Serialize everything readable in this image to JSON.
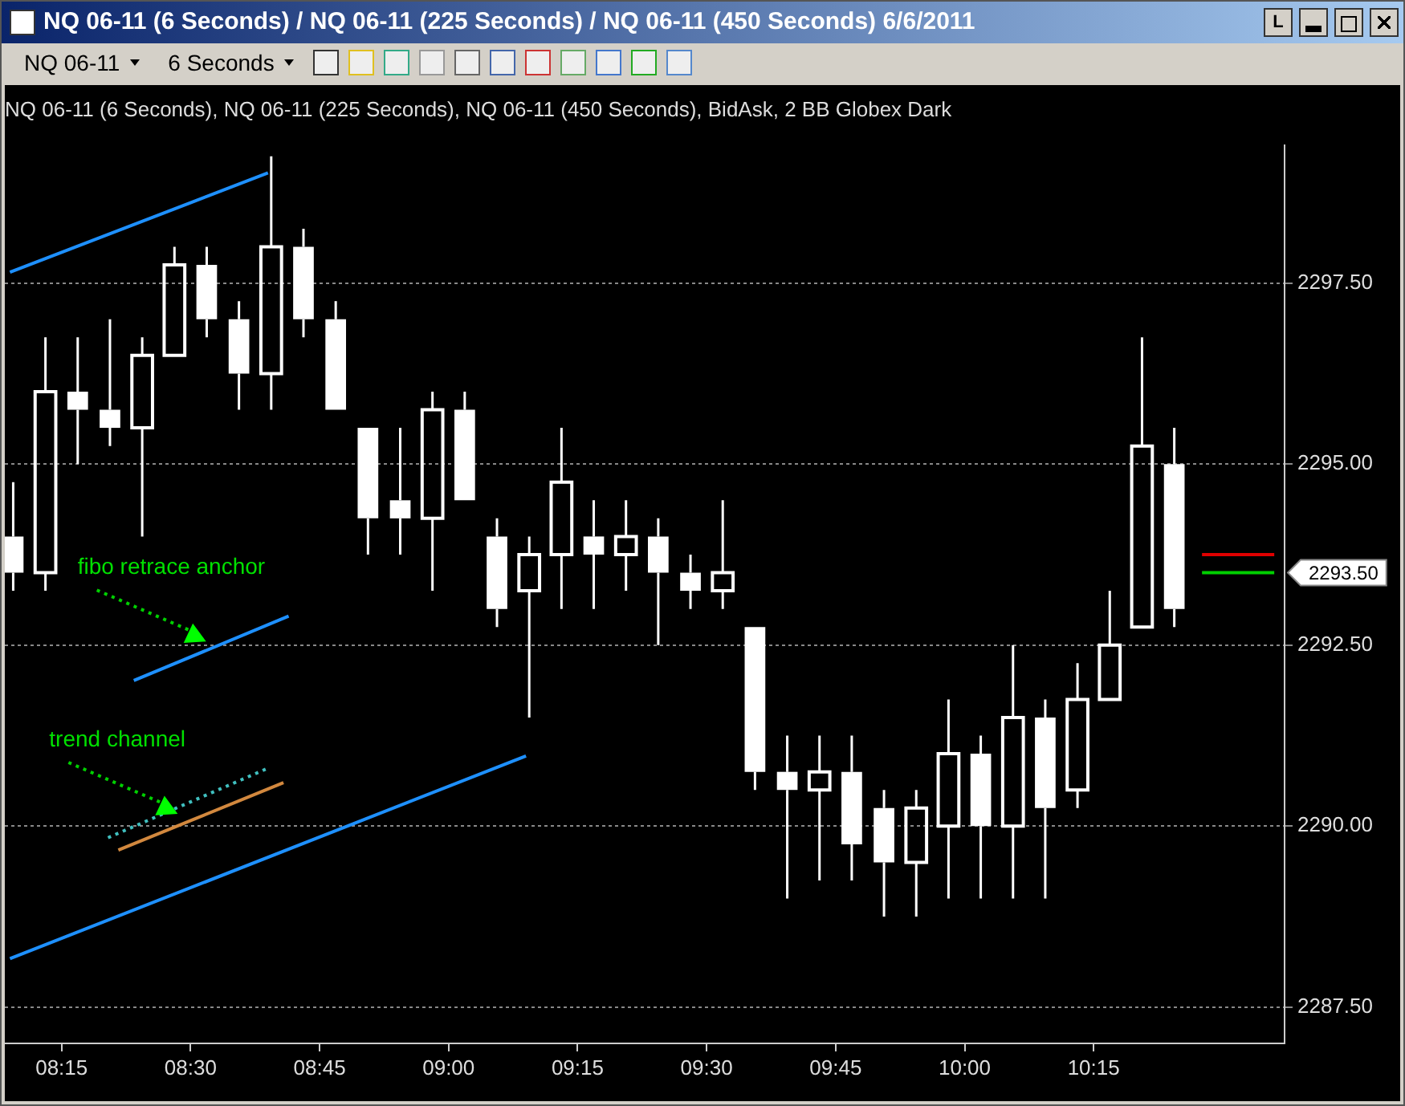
{
  "chart_data": {
    "type": "candlestick",
    "title": "NQ 06-11 (6 Seconds) / NQ 06-11 (225 Seconds) / NQ 06-11 (450 Seconds)  6/6/2011",
    "subtitle": "NQ 06-11 (6 Seconds), NQ 06-11 (225 Seconds), NQ 06-11 (450 Seconds), BidAsk, 2 BB Globex Dark",
    "xlim": [
      8.14,
      10.62
    ],
    "xticks": [
      {
        "value": 8.25,
        "label": "08:15"
      },
      {
        "value": 8.5,
        "label": "08:30"
      },
      {
        "value": 8.75,
        "label": "08:45"
      },
      {
        "value": 9,
        "label": "09:00"
      },
      {
        "value": 9.25,
        "label": "09:15"
      },
      {
        "value": 9.5,
        "label": "09:30"
      },
      {
        "value": 9.75,
        "label": "09:45"
      },
      {
        "value": 10,
        "label": "10:00"
      },
      {
        "value": 10.25,
        "label": "10:15"
      }
    ],
    "ylim": [
      2287.0,
      2299.4
    ],
    "yticks": [
      {
        "value": 2287.5,
        "label": "2287.50"
      },
      {
        "value": 2290,
        "label": "2290.00"
      },
      {
        "value": 2292.5,
        "label": "2292.50"
      },
      {
        "value": 2295,
        "label": "2295.00"
      },
      {
        "value": 2297.5,
        "label": "2297.50"
      }
    ],
    "grid": "y",
    "series": [
      {
        "type": "line",
        "color": "#1e90ff",
        "x": [
          8.15,
          8.65
        ],
        "values": [
          2297.65,
          2299.02
        ]
      },
      {
        "type": "line",
        "color": "#1e90ff",
        "x": [
          8.39,
          8.69
        ],
        "values": [
          2292.01,
          2292.9
        ]
      },
      {
        "type": "line",
        "color": "#1e90ff",
        "x": [
          8.15,
          9.15
        ],
        "values": [
          2288.17,
          2290.97
        ]
      },
      {
        "type": "line",
        "color": "#d2883e",
        "x": [
          8.36,
          8.68
        ],
        "values": [
          2289.67,
          2290.6
        ]
      },
      {
        "type": "line",
        "color": "#40c0c0",
        "line_style": "dotted",
        "x": [
          8.34,
          8.65
        ],
        "values": [
          2289.84,
          2290.8
        ]
      },
      {
        "type": "line",
        "color": "#e00000",
        "x": [
          10.46,
          10.6
        ],
        "values": [
          2293.75,
          2293.75
        ]
      },
      {
        "type": "line",
        "color": "#00d000",
        "x": [
          10.46,
          10.6
        ],
        "values": [
          2293.5,
          2293.5
        ]
      },
      {
        "type": "candlestick",
        "color": "#ffffff",
        "x": [
          8.15625,
          8.21875,
          8.28125,
          8.34375,
          8.40625,
          8.46875,
          8.53125,
          8.59375,
          8.65625,
          8.71875,
          8.78125,
          8.84375,
          8.90625,
          8.96875,
          9.03125,
          9.09375,
          9.15625,
          9.21875,
          9.28125,
          9.34375,
          9.40625,
          9.46875,
          9.53125,
          9.59375,
          9.65625,
          9.71875,
          9.78125,
          9.84375,
          9.90625,
          9.96875,
          10.03125,
          10.09375,
          10.15625,
          10.21875,
          10.28125,
          10.34375,
          10.40625
        ],
        "ohlc": [
          [
            2294.0,
            2294.75,
            2293.25,
            2293.5
          ],
          [
            2293.5,
            2296.75,
            2293.25,
            2296.0
          ],
          [
            2296.0,
            2296.75,
            2295.0,
            2295.75
          ],
          [
            2295.75,
            2297.0,
            2295.25,
            2295.5
          ],
          [
            2295.5,
            2296.75,
            2294.0,
            2296.5
          ],
          [
            2296.5,
            2298.0,
            2296.5,
            2297.75
          ],
          [
            2297.75,
            2298.0,
            2296.75,
            2297.0
          ],
          [
            2297.0,
            2297.25,
            2295.75,
            2296.25
          ],
          [
            2296.25,
            2299.25,
            2295.75,
            2298.0
          ],
          [
            2298.0,
            2298.25,
            2296.75,
            2297.0
          ],
          [
            2297.0,
            2297.25,
            2295.75,
            2295.75
          ],
          [
            2295.5,
            2295.5,
            2293.75,
            2294.25
          ],
          [
            2294.5,
            2295.5,
            2293.75,
            2294.25
          ],
          [
            2294.25,
            2296.0,
            2293.25,
            2295.75
          ],
          [
            2295.75,
            2296.0,
            2294.5,
            2294.5
          ],
          [
            2294.0,
            2294.25,
            2292.75,
            2293.0
          ],
          [
            2293.25,
            2294.0,
            2291.5,
            2293.75
          ],
          [
            2293.75,
            2295.5,
            2293.0,
            2294.75
          ],
          [
            2294.0,
            2294.5,
            2293.0,
            2293.75
          ],
          [
            2293.75,
            2294.5,
            2293.25,
            2294.0
          ],
          [
            2294.0,
            2294.25,
            2292.5,
            2293.5
          ],
          [
            2293.5,
            2293.75,
            2293.0,
            2293.25
          ],
          [
            2293.25,
            2294.5,
            2293.0,
            2293.5
          ],
          [
            2292.75,
            2292.75,
            2290.5,
            2290.75
          ],
          [
            2290.75,
            2291.25,
            2289.0,
            2290.5
          ],
          [
            2290.5,
            2291.25,
            2289.25,
            2290.75
          ],
          [
            2290.75,
            2291.25,
            2289.25,
            2289.75
          ],
          [
            2290.25,
            2290.5,
            2288.75,
            2289.5
          ],
          [
            2289.5,
            2290.5,
            2288.75,
            2290.25
          ],
          [
            2290.0,
            2291.75,
            2289.0,
            2291.0
          ],
          [
            2291.0,
            2291.25,
            2289.0,
            2290.0
          ],
          [
            2290.0,
            2292.5,
            2289.0,
            2291.5
          ],
          [
            2291.5,
            2291.75,
            2289.0,
            2290.25
          ],
          [
            2290.5,
            2292.25,
            2290.25,
            2291.75
          ],
          [
            2291.75,
            2293.25,
            2291.75,
            2292.5
          ],
          [
            2292.75,
            2296.75,
            2292.75,
            2295.25
          ],
          [
            2295.0,
            2295.5,
            2292.75,
            2293.0
          ]
        ]
      }
    ],
    "annotations": [
      "2293.50",
      {
        "text": "fibo retrace anchor",
        "x": 8.53,
        "y": 2292.55
      },
      {
        "text": "trend channel",
        "x": 8.475,
        "y": 2290.17
      },
      "NQ 06-11",
      "6 Seconds",
      "L"
    ]
  }
}
